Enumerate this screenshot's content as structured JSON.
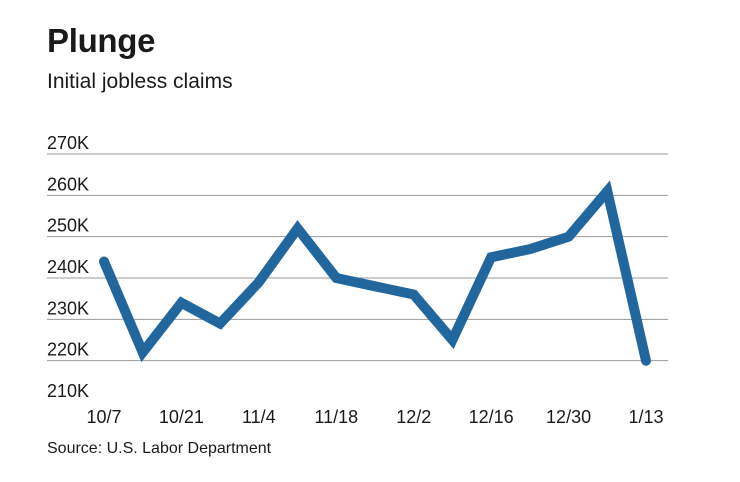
{
  "chart_data": {
    "type": "line",
    "title": "Plunge",
    "subtitle": "Initial jobless claims",
    "source": "Source: U.S. Labor Department",
    "xlabel": "",
    "ylabel": "",
    "ylim": [
      210000,
      270000
    ],
    "y_ticks": [
      {
        "value": 210000,
        "label": "210K"
      },
      {
        "value": 220000,
        "label": "220K"
      },
      {
        "value": 230000,
        "label": "230K"
      },
      {
        "value": 240000,
        "label": "240K"
      },
      {
        "value": 250000,
        "label": "250K"
      },
      {
        "value": 260000,
        "label": "260K"
      },
      {
        "value": 270000,
        "label": "270K"
      }
    ],
    "x_tick_labels": [
      {
        "index": 0,
        "label": "10/7"
      },
      {
        "index": 2,
        "label": "10/21"
      },
      {
        "index": 4,
        "label": "11/4"
      },
      {
        "index": 6,
        "label": "11/18"
      },
      {
        "index": 8,
        "label": "12/2"
      },
      {
        "index": 10,
        "label": "12/16"
      },
      {
        "index": 12,
        "label": "12/30"
      },
      {
        "index": 14,
        "label": "1/13"
      }
    ],
    "categories": [
      "10/7",
      "10/14",
      "10/21",
      "10/28",
      "11/4",
      "11/11",
      "11/18",
      "11/25",
      "12/2",
      "12/9",
      "12/16",
      "12/23",
      "12/30",
      "1/6",
      "1/13"
    ],
    "series": [
      {
        "name": "Initial jobless claims",
        "color": "#21679e",
        "values": [
          244000,
          222000,
          234000,
          229000,
          239000,
          252000,
          240000,
          238000,
          236000,
          225000,
          245000,
          247000,
          250000,
          261000,
          220000
        ]
      }
    ]
  }
}
